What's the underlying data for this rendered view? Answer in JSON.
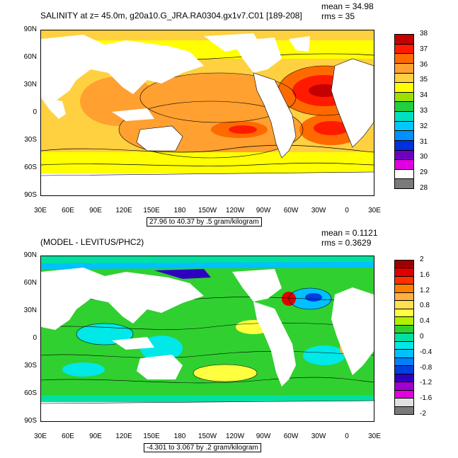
{
  "panels": [
    {
      "title": "SALINITY at z=  45.0m, g20a10.G_JRA.RA0304.gx1v7.C01 [189-208]",
      "mean_text": "mean = 34.98",
      "rms_text": "rms = 35",
      "range_text": "27.96 to 40.37 by .5 gram/kilogram",
      "colorbar_labels": [
        "38",
        "37",
        "36",
        "35",
        "34",
        "33",
        "32",
        "31",
        "30",
        "29",
        "28"
      ],
      "colorbar_colors": [
        "#c40000",
        "#ff1a00",
        "#ff6a00",
        "#ffa030",
        "#ffd040",
        "#ffff00",
        "#9be000",
        "#20d040",
        "#00e0c0",
        "#00c8ff",
        "#0090ff",
        "#0030e0",
        "#7000c0",
        "#e000e0",
        "#ffffff",
        "#7a7a7a"
      ]
    },
    {
      "title": "(MODEL - LEVITUS/PHC2)",
      "mean_text": "mean = 0.1121",
      "rms_text": "rms = 0.3629",
      "range_text": "-4.301 to 3.067 by .2 gram/kilogram",
      "colorbar_labels": [
        "2",
        "1.6",
        "1.2",
        "0.8",
        "0.4",
        "0",
        "-0.4",
        "-0.8",
        "-1.2",
        "-1.6",
        "-2"
      ],
      "colorbar_colors": [
        "#a00000",
        "#e00000",
        "#ff3000",
        "#ff8000",
        "#ffb040",
        "#ffe050",
        "#ffff40",
        "#b0f000",
        "#30d030",
        "#00e0a0",
        "#00e8e8",
        "#00c0ff",
        "#0080ff",
        "#0040e0",
        "#3000c0",
        "#a000d0",
        "#e000e0",
        "#e0e0e0",
        "#7a7a7a"
      ]
    }
  ],
  "lat_labels": [
    "90N",
    "60N",
    "30N",
    "0",
    "30S",
    "60S",
    "90S"
  ],
  "lon_labels": [
    "30E",
    "60E",
    "90E",
    "120E",
    "150E",
    "180",
    "150W",
    "120W",
    "90W",
    "60W",
    "30W",
    "0",
    "30E"
  ],
  "colors": {
    "land": "#ffffff",
    "contour": "#000000"
  }
}
